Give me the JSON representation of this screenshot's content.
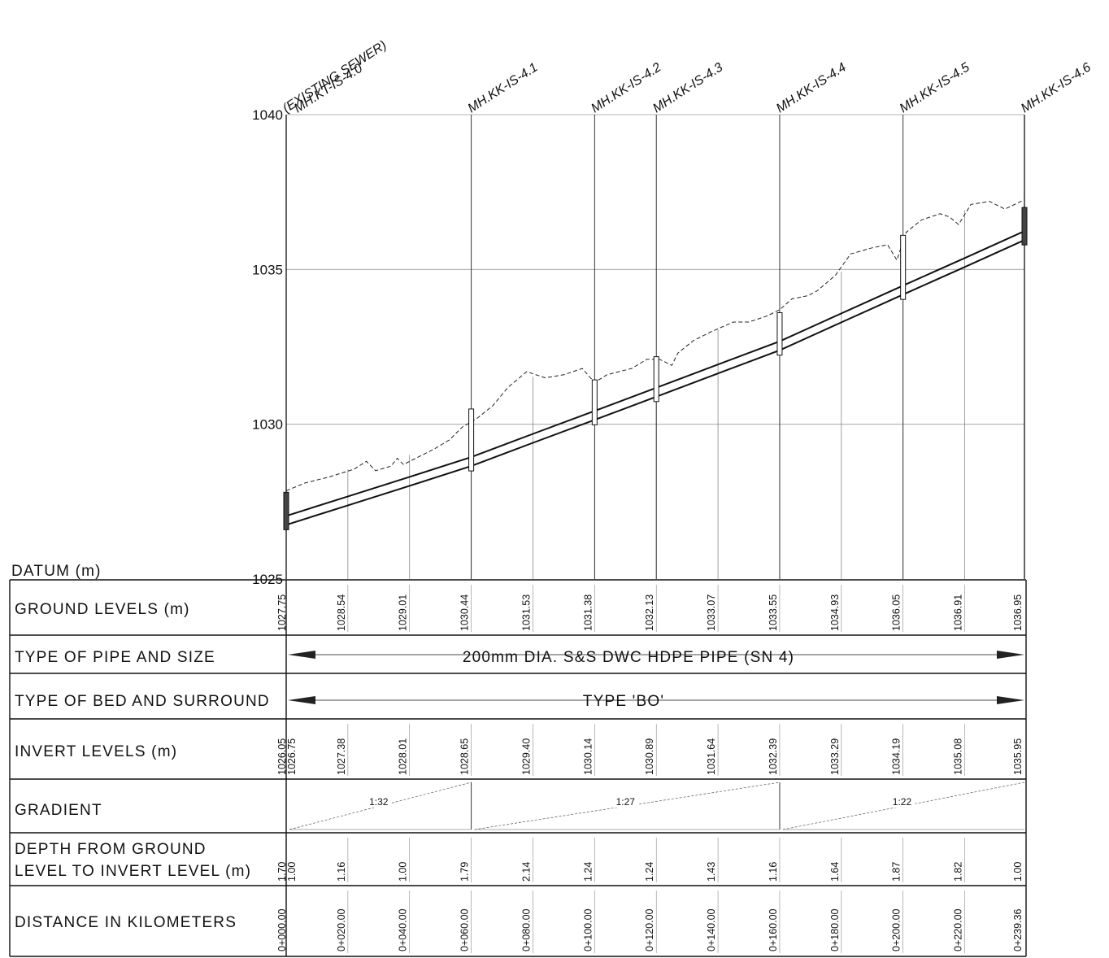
{
  "title": "",
  "datum_label": "DATUM (m)",
  "y_axis": {
    "ticks": [
      1025,
      1030,
      1035,
      1040
    ],
    "range": [
      1025,
      1040
    ]
  },
  "existing_sewer_label": "(EXISTING SEWER)",
  "manholes": [
    {
      "name": "MH.KT-IS-4.0",
      "chainage": 0
    },
    {
      "name": "MH.KK-IS-4.1",
      "chainage": 60
    },
    {
      "name": "MH.KK-IS-4.2",
      "chainage": 100
    },
    {
      "name": "MH.KK-IS-4.3",
      "chainage": 120
    },
    {
      "name": "MH.KK-IS-4.4",
      "chainage": 160
    },
    {
      "name": "MH.KK-IS-4.5",
      "chainage": 200
    },
    {
      "name": "MH.KK-IS-4.6",
      "chainage": 239.36
    }
  ],
  "rows": {
    "ground_levels": "GROUND LEVELS (m)",
    "pipe_type": "TYPE OF PIPE AND SIZE",
    "bed_type": "TYPE OF BED AND SURROUND",
    "invert_levels": "INVERT LEVELS (m)",
    "gradient": "GRADIENT",
    "depth_line1": "DEPTH FROM GROUND",
    "depth_line2": "LEVEL TO INVERT LEVEL (m)",
    "distance": "DISTANCE IN KILOMETERS"
  },
  "pipe_spec": "200mm DIA. S&S DWC HDPE PIPE (SN 4)",
  "bed_spec": "TYPE 'BO'",
  "chart_data": {
    "type": "line",
    "x_unit": "m",
    "stations": [
      0,
      20,
      40,
      60,
      80,
      100,
      120,
      140,
      160,
      180,
      200,
      220,
      239.36
    ],
    "ground_levels": [
      "1027.75",
      "1028.54",
      "1029.01",
      "1030.44",
      "1031.53",
      "1031.38",
      "1032.13",
      "1033.07",
      "1033.55",
      "1034.93",
      "1036.05",
      "1036.91",
      "1036.95"
    ],
    "invert_levels": [
      "1026.75",
      "1027.38",
      "1028.01",
      "1028.65",
      "1029.40",
      "1030.14",
      "1030.89",
      "1031.64",
      "1032.39",
      "1033.29",
      "1034.19",
      "1035.08",
      "1035.95"
    ],
    "invert_start_extra": "1026.05",
    "depths": [
      "1.00",
      "1.16",
      "1.00",
      "1.79",
      "2.14",
      "1.24",
      "1.24",
      "1.43",
      "1.16",
      "1.64",
      "1.87",
      "1.82",
      "1.00"
    ],
    "depth_start_extra": "1.70",
    "distances": [
      "0+000.00",
      "0+020.00",
      "0+040.00",
      "0+060.00",
      "0+080.00",
      "0+100.00",
      "0+120.00",
      "0+140.00",
      "0+160.00",
      "0+180.00",
      "0+200.00",
      "0+220.00",
      "0+239.36"
    ],
    "gradients": [
      {
        "label": "1:32",
        "from": 0,
        "to": 60
      },
      {
        "label": "1:27",
        "from": 60,
        "to": 160
      },
      {
        "label": "1:22",
        "from": 160,
        "to": 239.36
      }
    ],
    "ground_profile": [
      [
        0,
        1027.85
      ],
      [
        6,
        1028.1
      ],
      [
        14,
        1028.3
      ],
      [
        22,
        1028.55
      ],
      [
        26,
        1028.8
      ],
      [
        29,
        1028.5
      ],
      [
        34,
        1028.65
      ],
      [
        36,
        1028.9
      ],
      [
        38,
        1028.7
      ],
      [
        44,
        1029.0
      ],
      [
        48,
        1029.2
      ],
      [
        53,
        1029.5
      ],
      [
        57,
        1029.9
      ],
      [
        62,
        1030.2
      ],
      [
        67,
        1030.6
      ],
      [
        72,
        1031.2
      ],
      [
        78,
        1031.7
      ],
      [
        84,
        1031.5
      ],
      [
        90,
        1031.6
      ],
      [
        96,
        1031.8
      ],
      [
        100,
        1031.35
      ],
      [
        104,
        1031.6
      ],
      [
        112,
        1031.8
      ],
      [
        117,
        1032.1
      ],
      [
        121,
        1032.1
      ],
      [
        125,
        1031.9
      ],
      [
        127,
        1032.3
      ],
      [
        132,
        1032.7
      ],
      [
        138,
        1033.0
      ],
      [
        145,
        1033.3
      ],
      [
        150,
        1033.3
      ],
      [
        156,
        1033.5
      ],
      [
        160,
        1033.7
      ],
      [
        164,
        1034.05
      ],
      [
        169,
        1034.15
      ],
      [
        172,
        1034.3
      ],
      [
        178,
        1034.8
      ],
      [
        183,
        1035.5
      ],
      [
        190,
        1035.7
      ],
      [
        195,
        1035.8
      ],
      [
        198,
        1035.3
      ],
      [
        201,
        1036.2
      ],
      [
        206,
        1036.6
      ],
      [
        212,
        1036.8
      ],
      [
        215,
        1036.7
      ],
      [
        218,
        1036.45
      ],
      [
        222,
        1037.1
      ],
      [
        228,
        1037.2
      ],
      [
        233,
        1036.95
      ],
      [
        239.36,
        1037.25
      ]
    ]
  }
}
